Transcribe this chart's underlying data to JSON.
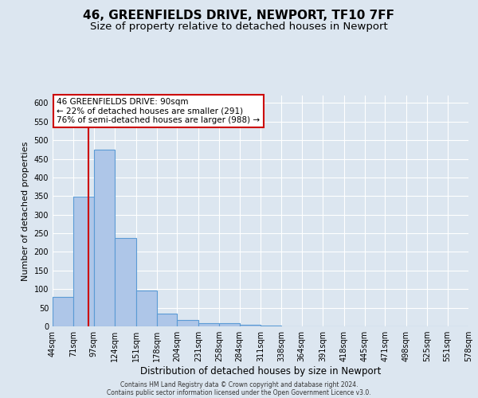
{
  "title": "46, GREENFIELDS DRIVE, NEWPORT, TF10 7FF",
  "subtitle": "Size of property relative to detached houses in Newport",
  "xlabel": "Distribution of detached houses by size in Newport",
  "ylabel": "Number of detached properties",
  "bin_edges": [
    44,
    71,
    97,
    124,
    151,
    178,
    204,
    231,
    258,
    284,
    311,
    338,
    364,
    391,
    418,
    445,
    471,
    498,
    525,
    551,
    578
  ],
  "bar_values": [
    80,
    348,
    475,
    238,
    97,
    35,
    18,
    8,
    8,
    5,
    2,
    1,
    1,
    1,
    1,
    0,
    0,
    0,
    0,
    1
  ],
  "bar_color": "#aec6e8",
  "bar_edge_color": "#5b9bd5",
  "property_size": 90,
  "vline_color": "#cc0000",
  "annotation_line1": "46 GREENFIELDS DRIVE: 90sqm",
  "annotation_line2": "← 22% of detached houses are smaller (291)",
  "annotation_line3": "76% of semi-detached houses are larger (988) →",
  "annotation_box_color": "#ffffff",
  "annotation_box_edge_color": "#cc0000",
  "ylim": [
    0,
    620
  ],
  "yticks": [
    0,
    50,
    100,
    150,
    200,
    250,
    300,
    350,
    400,
    450,
    500,
    550,
    600
  ],
  "background_color": "#dce6f0",
  "plot_bg_color": "#dce6f0",
  "grid_color": "#ffffff",
  "footer_line1": "Contains HM Land Registry data © Crown copyright and database right 2024.",
  "footer_line2": "Contains public sector information licensed under the Open Government Licence v3.0.",
  "title_fontsize": 11,
  "subtitle_fontsize": 9.5,
  "xlabel_fontsize": 8.5,
  "ylabel_fontsize": 8,
  "tick_fontsize": 7,
  "annotation_fontsize": 7.5,
  "footer_fontsize": 5.5
}
